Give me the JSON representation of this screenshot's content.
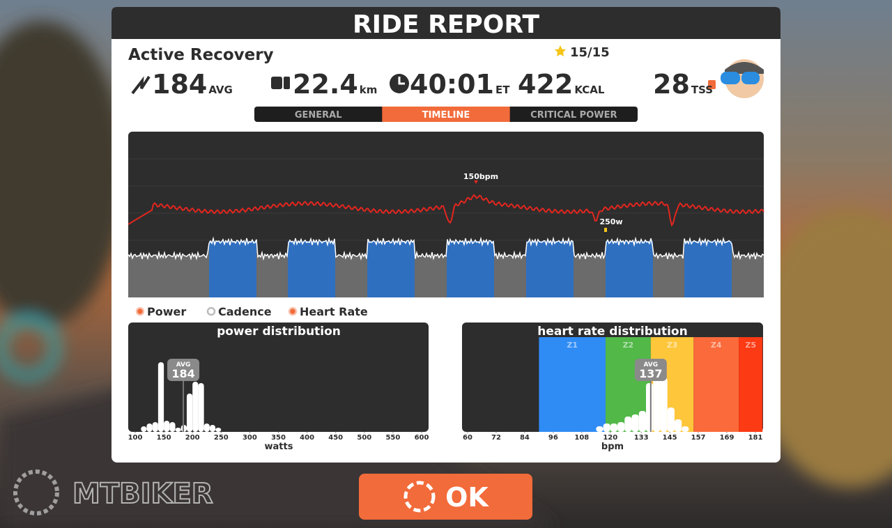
{
  "header": {
    "title": "RIDE REPORT"
  },
  "workout": {
    "name": "Active Recovery",
    "stars": "15/15"
  },
  "stats": [
    {
      "value": "184",
      "unit": "AVG"
    },
    {
      "value": "22.4",
      "unit": "km"
    },
    {
      "value": "40:01",
      "unit": "ET"
    },
    {
      "value": "422",
      "unit": "KCAL"
    },
    {
      "value": "28",
      "unit": "TSS"
    }
  ],
  "tabs": [
    "GENERAL",
    "TIMELINE",
    "CRITICAL POWER"
  ],
  "active_tab": 1,
  "timeline": {
    "annotations": [
      "150bpm",
      "250w"
    ]
  },
  "legend": [
    {
      "name": "Power",
      "on": true
    },
    {
      "name": "Cadence",
      "on": false
    },
    {
      "name": "Heart Rate",
      "on": true
    }
  ],
  "power_distribution": {
    "title": "power distribution",
    "xlabel": "watts",
    "xlim": [
      100,
      600
    ],
    "xticks": [
      100,
      150,
      200,
      250,
      300,
      350,
      400,
      450,
      500,
      550,
      600
    ],
    "avg_label": "AVG",
    "avg": 184,
    "bins": [
      110,
      120,
      130,
      140,
      150,
      160,
      170,
      180,
      190,
      200,
      210,
      220,
      230,
      240,
      250
    ],
    "values": [
      8,
      12,
      14,
      100,
      16,
      14,
      6,
      10,
      55,
      72,
      70,
      12,
      10,
      6
    ]
  },
  "hr_distribution": {
    "title": "heart rate distribution",
    "xlabel": "bpm",
    "xlim": [
      60,
      181
    ],
    "xticks": [
      60,
      72,
      84,
      96,
      108,
      120,
      133,
      145,
      157,
      169,
      181
    ],
    "avg_label": "AVG",
    "avg": 137,
    "zones": [
      {
        "name": "Z1",
        "start": 90,
        "end": 118,
        "color": "#2f8cf5"
      },
      {
        "name": "Z2",
        "start": 118,
        "end": 137,
        "color": "#52b848"
      },
      {
        "name": "Z3",
        "start": 137,
        "end": 155,
        "color": "#fdc63b"
      },
      {
        "name": "Z4",
        "start": 155,
        "end": 174,
        "color": "#fb6a3a"
      },
      {
        "name": "Z5",
        "start": 174,
        "end": 184,
        "color": "#fc3a14"
      }
    ],
    "bins": [
      114,
      117,
      120,
      123,
      126,
      129,
      132,
      135,
      138,
      141,
      144,
      147,
      150,
      153
    ],
    "values": [
      8,
      12,
      12,
      14,
      22,
      25,
      30,
      70,
      80,
      78,
      35,
      18,
      8
    ]
  },
  "button": "OK",
  "watermark": "MTBIKER"
}
